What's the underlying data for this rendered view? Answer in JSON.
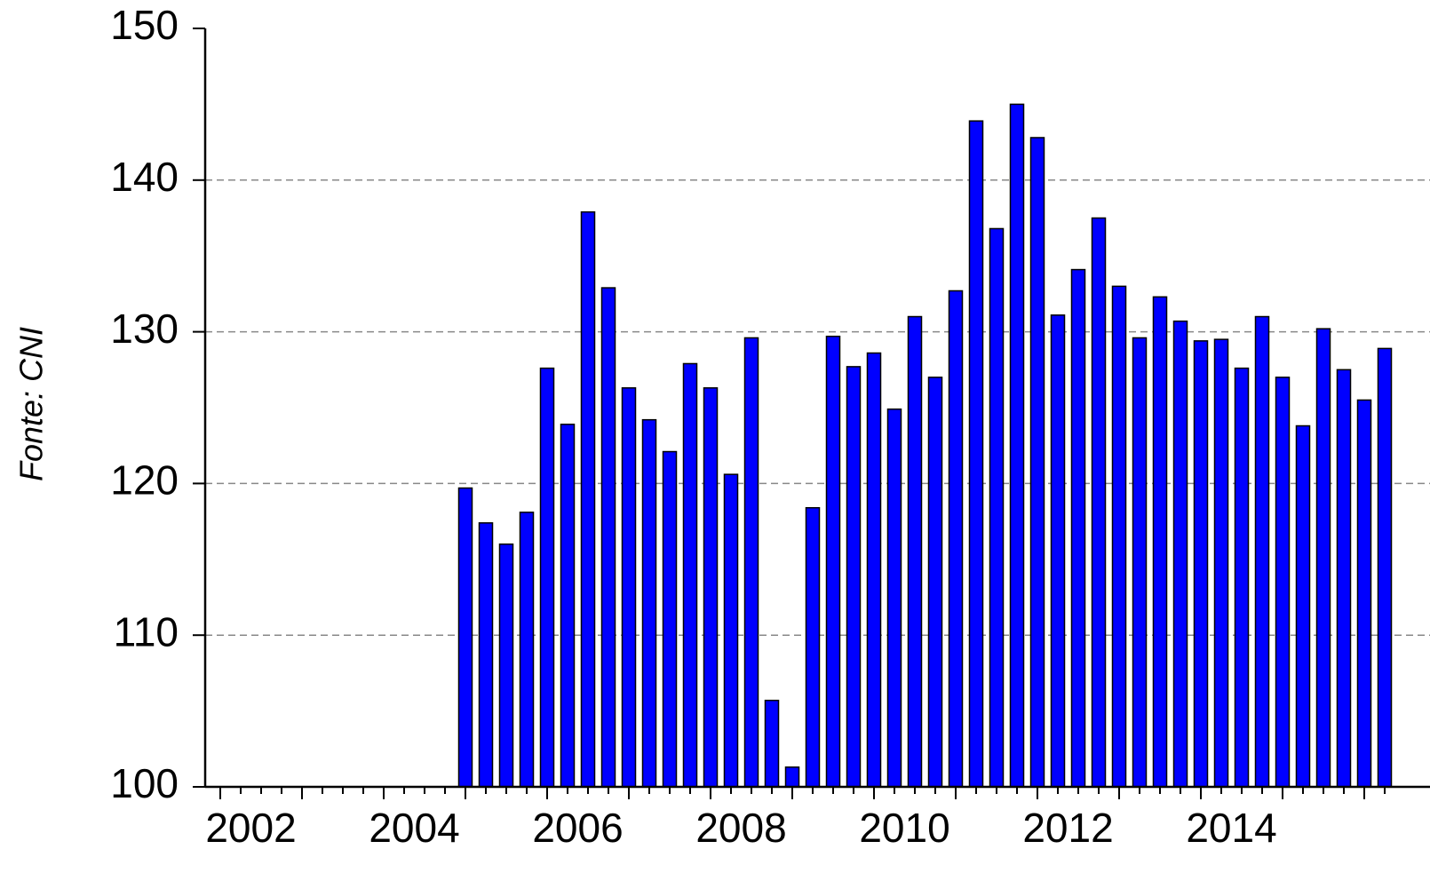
{
  "chart_data": {
    "type": "bar",
    "y_label": "Fonte: CNI",
    "categories": [
      "2002",
      null,
      null,
      null,
      null,
      null,
      null,
      null,
      "2004",
      null,
      null,
      null,
      null,
      null,
      null,
      null,
      "2006",
      null,
      null,
      null,
      null,
      null,
      null,
      null,
      "2008",
      null,
      null,
      null,
      null,
      null,
      null,
      null,
      "2010",
      null,
      null,
      null,
      null,
      null,
      null,
      null,
      "2012",
      null,
      null,
      null,
      null,
      null,
      null,
      null,
      "2014",
      null,
      null,
      null,
      null,
      null,
      null,
      null,
      null,
      null
    ],
    "values": [
      null,
      null,
      null,
      null,
      null,
      null,
      null,
      null,
      null,
      null,
      null,
      null,
      119.7,
      117.4,
      116.0,
      118.1,
      127.6,
      123.9,
      137.9,
      132.9,
      126.3,
      124.2,
      122.1,
      127.9,
      126.3,
      120.6,
      129.6,
      105.7,
      101.3,
      118.4,
      129.7,
      127.7,
      128.6,
      124.9,
      131.0,
      127.0,
      132.7,
      143.9,
      136.8,
      145.0,
      142.8,
      131.1,
      134.1,
      137.5,
      133.0,
      129.6,
      132.3,
      130.7,
      129.4,
      129.5,
      127.6,
      131.0,
      127.0,
      123.8,
      130.2,
      127.5,
      125.5,
      128.9
    ],
    "color": "#0000ff",
    "ylim": [
      100,
      150
    ],
    "yticks": [
      100,
      110,
      120,
      130,
      140,
      150
    ],
    "grid": true
  }
}
